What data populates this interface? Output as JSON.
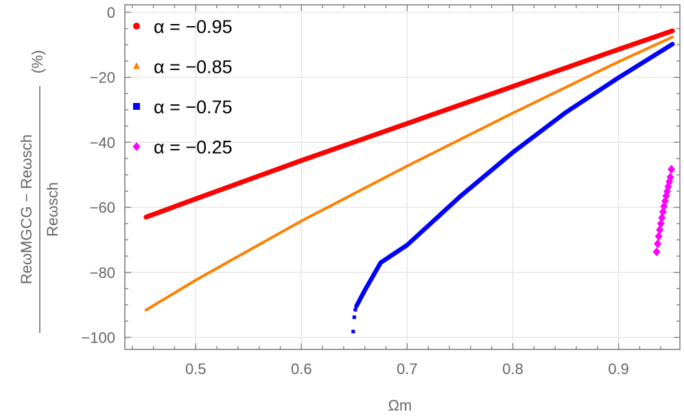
{
  "chart_data": {
    "type": "scatter",
    "title": "",
    "xlabel": "Ωm",
    "ylabel": {
      "numerator": "ReωMGCG − Reωsch",
      "denominator": "Reωsch",
      "unit": "(%)"
    },
    "xlim": [
      0.433,
      0.958
    ],
    "ylim": [
      -103.7,
      2.3
    ],
    "x_ticks": [
      0.5,
      0.6,
      0.7,
      0.8,
      0.9
    ],
    "x_tick_labels": [
      "0.5",
      "0.6",
      "0.7",
      "0.8",
      "0.9"
    ],
    "y_ticks": [
      0,
      -20,
      -40,
      -60,
      -80,
      -100
    ],
    "y_tick_labels": [
      "0",
      "−20",
      "−40",
      "−60",
      "−80",
      "−100"
    ],
    "grid": true,
    "legend_position": "top-left",
    "series": [
      {
        "name": "α = −0.95",
        "color": "#ff0000",
        "marker": "circle",
        "points": [
          [
            0.453,
            -63.0
          ],
          [
            0.5,
            -57.4
          ],
          [
            0.6,
            -45.6
          ],
          [
            0.7,
            -34.2
          ],
          [
            0.8,
            -22.8
          ],
          [
            0.9,
            -11.4
          ],
          [
            0.951,
            -5.7
          ]
        ]
      },
      {
        "name": "α = −0.85",
        "color": "#ff8000",
        "marker": "triangle",
        "points": [
          [
            0.453,
            -91.6
          ],
          [
            0.5,
            -82.4
          ],
          [
            0.6,
            -64.2
          ],
          [
            0.7,
            -47.3
          ],
          [
            0.8,
            -31.0
          ],
          [
            0.9,
            -15.2
          ],
          [
            0.951,
            -7.6
          ]
        ]
      },
      {
        "name": "α = −0.75",
        "color": "#0000ff",
        "marker": "square",
        "isolated_points": [
          [
            0.649,
            -98.2
          ],
          [
            0.65,
            -93.8
          ],
          [
            0.651,
            -91.5
          ]
        ],
        "points": [
          [
            0.652,
            -90.4
          ],
          [
            0.66,
            -85.5
          ],
          [
            0.675,
            -77.0
          ],
          [
            0.7,
            -71.6
          ],
          [
            0.75,
            -56.7
          ],
          [
            0.8,
            -43.1
          ],
          [
            0.85,
            -30.8
          ],
          [
            0.9,
            -20.1
          ],
          [
            0.951,
            -9.8
          ]
        ]
      },
      {
        "name": "α = −0.25",
        "color": "#ff00ff",
        "marker": "diamond",
        "isolated_points": [
          [
            0.936,
            -73.7
          ],
          [
            0.937,
            -71.2
          ],
          [
            0.938,
            -68.9
          ],
          [
            0.939,
            -66.9
          ],
          [
            0.94,
            -65.0
          ],
          [
            0.941,
            -63.2
          ],
          [
            0.942,
            -61.4
          ],
          [
            0.943,
            -59.7
          ],
          [
            0.944,
            -58.1
          ],
          [
            0.945,
            -56.5
          ],
          [
            0.946,
            -55.1
          ],
          [
            0.947,
            -53.6
          ],
          [
            0.948,
            -52.1
          ],
          [
            0.949,
            -50.7
          ],
          [
            0.95,
            -48.3
          ]
        ]
      }
    ]
  }
}
